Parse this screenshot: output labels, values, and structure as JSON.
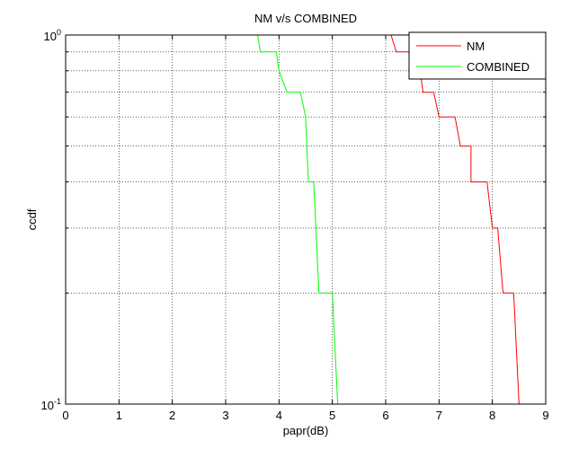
{
  "chart_data": {
    "type": "line",
    "title": "NM v/s COMBINED",
    "xlabel": "papr(dB)",
    "ylabel": "ccdf",
    "xlim": [
      0,
      9
    ],
    "ylim": [
      0.1,
      1
    ],
    "yscale": "log",
    "xticks": [
      0,
      1,
      2,
      3,
      4,
      5,
      6,
      7,
      8,
      9
    ],
    "xtick_labels": [
      "0",
      "1",
      "2",
      "3",
      "4",
      "5",
      "6",
      "7",
      "8",
      "9"
    ],
    "yticks": [
      {
        "value": 0.1,
        "base": "10",
        "exp": "-1"
      },
      {
        "value": 1,
        "base": "10",
        "exp": "0"
      }
    ],
    "grid": true,
    "legend_position": "top-right",
    "series": [
      {
        "name": "NM",
        "color": "#ff0000",
        "x": [
          0,
          6.1,
          6.2,
          6.6,
          6.7,
          6.9,
          7.0,
          7.3,
          7.4,
          7.6,
          7.6,
          7.9,
          8.0,
          8.1,
          8.2,
          8.4,
          8.5,
          9.0
        ],
        "y": [
          1,
          1,
          0.9,
          0.9,
          0.7,
          0.7,
          0.6,
          0.6,
          0.5,
          0.5,
          0.4,
          0.4,
          0.3,
          0.3,
          0.2,
          0.2,
          0.1,
          0.1
        ]
      },
      {
        "name": "COMBINED",
        "color": "#00ff00",
        "x": [
          0,
          3.6,
          3.65,
          3.95,
          4.0,
          4.15,
          4.2,
          4.4,
          4.5,
          4.55,
          4.6,
          4.65,
          4.75,
          5.0,
          5.1
        ],
        "y": [
          1,
          1,
          0.9,
          0.9,
          0.8,
          0.7,
          0.7,
          0.7,
          0.6,
          0.4,
          0.4,
          0.4,
          0.2,
          0.2,
          0.1
        ]
      }
    ]
  }
}
